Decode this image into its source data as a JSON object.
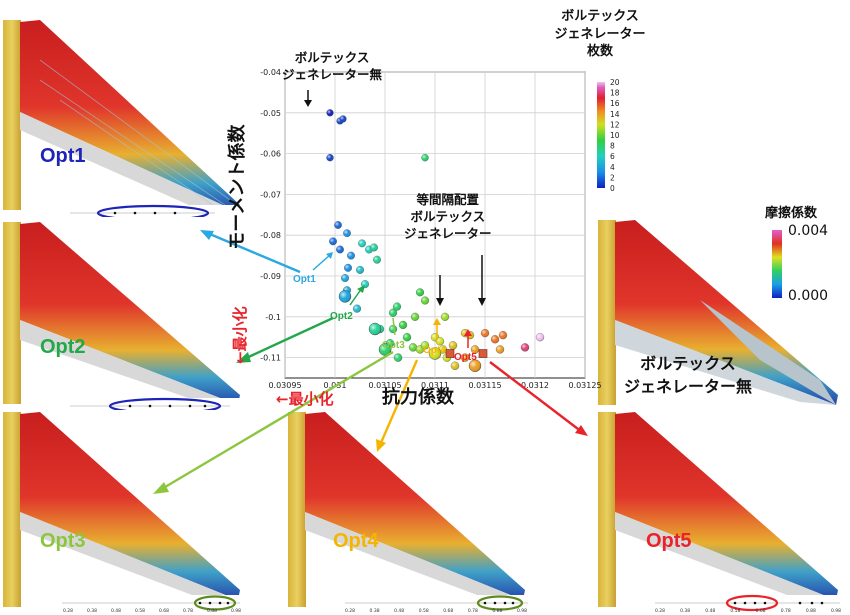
{
  "chart_data": {
    "type": "scatter",
    "xlabel": "抗力係数",
    "ylabel": "モーメント係数",
    "xlim": [
      0.03095,
      0.03125
    ],
    "ylim": [
      -0.115,
      -0.04
    ],
    "x_ticks": [
      "0.03095",
      "0.031",
      "0.03105",
      "0.0311",
      "0.03115",
      "0.0312",
      "0.03125"
    ],
    "y_ticks": [
      "-0.04",
      "-0.05",
      "-0.06",
      "-0.07",
      "-0.08",
      "-0.09",
      "-0.1",
      "-0.11"
    ],
    "grid": true,
    "colorbar": {
      "title": "ボルテックス ジェネレーター 枚数",
      "title_lines": [
        "ボルテックス",
        "ジェネレーター",
        "枚数"
      ],
      "ticks": [
        "20",
        "18",
        "16",
        "14",
        "12",
        "10",
        "8",
        "6",
        "4",
        "2",
        "0"
      ],
      "range": [
        0,
        20
      ]
    },
    "points": [
      {
        "x": 0.030995,
        "y": -0.05,
        "c": 0
      },
      {
        "x": 0.031005,
        "y": -0.052,
        "c": 1
      },
      {
        "x": 0.031008,
        "y": -0.0515,
        "c": 1
      },
      {
        "x": 0.030995,
        "y": -0.061,
        "c": 1
      },
      {
        "x": 0.03109,
        "y": -0.061,
        "c": 8
      },
      {
        "x": 0.031003,
        "y": -0.0775,
        "c": 2
      },
      {
        "x": 0.031012,
        "y": -0.0795,
        "c": 3
      },
      {
        "x": 0.030998,
        "y": -0.0815,
        "c": 2
      },
      {
        "x": 0.031005,
        "y": -0.0835,
        "c": 2
      },
      {
        "x": 0.031016,
        "y": -0.085,
        "c": 3
      },
      {
        "x": 0.031013,
        "y": -0.088,
        "c": 3
      },
      {
        "x": 0.03101,
        "y": -0.0905,
        "c": 4
      },
      {
        "x": 0.031012,
        "y": -0.0935,
        "c": 4
      },
      {
        "x": 0.031027,
        "y": -0.082,
        "c": 6
      },
      {
        "x": 0.031034,
        "y": -0.0835,
        "c": 6
      },
      {
        "x": 0.031039,
        "y": -0.083,
        "c": 7
      },
      {
        "x": 0.031042,
        "y": -0.086,
        "c": 7
      },
      {
        "x": 0.031025,
        "y": -0.0885,
        "c": 5
      },
      {
        "x": 0.03103,
        "y": -0.092,
        "c": 6
      },
      {
        "x": 0.031022,
        "y": -0.098,
        "c": 5
      },
      {
        "x": 0.031045,
        "y": -0.103,
        "c": 7
      },
      {
        "x": 0.031058,
        "y": -0.099,
        "c": 8
      },
      {
        "x": 0.031062,
        "y": -0.0975,
        "c": 8
      },
      {
        "x": 0.031058,
        "y": -0.103,
        "c": 8
      },
      {
        "x": 0.031055,
        "y": -0.1065,
        "c": 8
      },
      {
        "x": 0.031052,
        "y": -0.1085,
        "c": 8
      },
      {
        "x": 0.031063,
        "y": -0.11,
        "c": 8
      },
      {
        "x": 0.031068,
        "y": -0.102,
        "c": 9
      },
      {
        "x": 0.031072,
        "y": -0.105,
        "c": 9
      },
      {
        "x": 0.031078,
        "y": -0.1075,
        "c": 10
      },
      {
        "x": 0.031085,
        "y": -0.094,
        "c": 9
      },
      {
        "x": 0.03109,
        "y": -0.096,
        "c": 10
      },
      {
        "x": 0.03108,
        "y": -0.1,
        "c": 10
      },
      {
        "x": 0.031085,
        "y": -0.108,
        "c": 11
      },
      {
        "x": 0.03109,
        "y": -0.107,
        "c": 11
      },
      {
        "x": 0.0311,
        "y": -0.105,
        "c": 12
      },
      {
        "x": 0.031105,
        "y": -0.106,
        "c": 12
      },
      {
        "x": 0.03111,
        "y": -0.1,
        "c": 11
      },
      {
        "x": 0.031108,
        "y": -0.108,
        "c": 12
      },
      {
        "x": 0.031118,
        "y": -0.107,
        "c": 13
      },
      {
        "x": 0.031112,
        "y": -0.11,
        "c": 12
      },
      {
        "x": 0.03113,
        "y": -0.104,
        "c": 13
      },
      {
        "x": 0.031135,
        "y": -0.1045,
        "c": 13
      },
      {
        "x": 0.03112,
        "y": -0.112,
        "c": 13
      },
      {
        "x": 0.03113,
        "y": -0.11,
        "c": 14
      },
      {
        "x": 0.03114,
        "y": -0.108,
        "c": 14
      },
      {
        "x": 0.03115,
        "y": -0.104,
        "c": 15
      },
      {
        "x": 0.03116,
        "y": -0.1055,
        "c": 15
      },
      {
        "x": 0.031165,
        "y": -0.108,
        "c": 14
      },
      {
        "x": 0.031168,
        "y": -0.1045,
        "c": 15
      },
      {
        "x": 0.03119,
        "y": -0.1075,
        "c": 18
      },
      {
        "x": 0.031205,
        "y": -0.105,
        "c": 20
      }
    ],
    "highlighted": [
      {
        "name": "Opt1",
        "x": 0.03101,
        "y": -0.095,
        "c": 4
      },
      {
        "name": "Opt2",
        "x": 0.03104,
        "y": -0.103,
        "c": 7
      },
      {
        "name": "Opt3",
        "x": 0.03105,
        "y": -0.108,
        "c": 8
      },
      {
        "name": "Opt4",
        "x": 0.0311,
        "y": -0.109,
        "c": 12
      },
      {
        "name": "Opt5",
        "x": 0.03114,
        "y": -0.112,
        "c": 14
      }
    ],
    "equal_spacing_markers": [
      {
        "x": 0.031115,
        "y": -0.109
      },
      {
        "x": 0.031148,
        "y": -0.109
      }
    ],
    "annotations": {
      "no_vg_lines": [
        "ボルテックス",
        "ジェネレーター無"
      ],
      "equal_spacing_lines": [
        "等間隔配置",
        "ボルテックス",
        "ジェネレーター"
      ],
      "minimize_y": "←最小化",
      "minimize_x": "←最小化"
    }
  },
  "friction_legend": {
    "title": "摩擦係数",
    "max_label": "0.004",
    "min_label": "0.000"
  },
  "panels": [
    {
      "id": "opt1",
      "label": "Opt1",
      "color": "#1d24b8"
    },
    {
      "id": "opt2",
      "label": "Opt2",
      "color": "#22a84a"
    },
    {
      "id": "opt3",
      "label": "Opt3",
      "color": "#8cc63f"
    },
    {
      "id": "opt4",
      "label": "Opt4",
      "color": "#f5b400"
    },
    {
      "id": "opt5",
      "label": "Opt5",
      "color": "#e8232a"
    }
  ],
  "baseline_panel_lines": [
    "ボルテックス",
    "ジェネレーター無"
  ],
  "ticks_strip": [
    "0.28",
    "0.38",
    "0.48",
    "0.58",
    "0.68",
    "0.78",
    "0.88",
    "0.98"
  ],
  "colors": {
    "opt1": "#1d24b8",
    "opt1_arrow": "#2aa8e0",
    "opt2": "#22a84a",
    "opt3": "#8cc63f",
    "opt4": "#f5b400",
    "opt5": "#e8232a",
    "minimize": "#e8232a"
  }
}
